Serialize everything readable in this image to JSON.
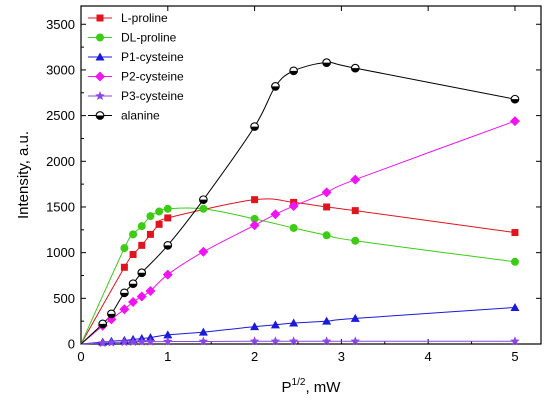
{
  "chart_data": {
    "type": "line",
    "title": "",
    "xlabel": {
      "base": "P",
      "sup": "1/2",
      "rest": ", mW"
    },
    "ylabel": "Intensity, a.u.",
    "xlim": [
      0,
      5.3
    ],
    "ylim": [
      0,
      3700
    ],
    "xticks": [
      0,
      1,
      2,
      3,
      4,
      5
    ],
    "yticks": [
      0,
      500,
      1000,
      1500,
      2000,
      2500,
      3000,
      3500
    ],
    "grid": false,
    "legend_position": "top-left",
    "series": [
      {
        "name": "L-proline",
        "color": "#e0141e",
        "marker": "square",
        "x": [
          0.5,
          0.6,
          0.7,
          0.8,
          0.9,
          1.0,
          2.0,
          2.45,
          2.83,
          3.16,
          5.0
        ],
        "y": [
          840,
          980,
          1080,
          1200,
          1310,
          1380,
          1580,
          1550,
          1500,
          1460,
          1220
        ]
      },
      {
        "name": "DL-proline",
        "color": "#3ccc14",
        "marker": "circle",
        "x": [
          0.5,
          0.6,
          0.7,
          0.8,
          0.9,
          1.0,
          1.41,
          2.0,
          2.45,
          2.83,
          3.16,
          5.0
        ],
        "y": [
          1050,
          1200,
          1290,
          1400,
          1450,
          1480,
          1480,
          1370,
          1270,
          1190,
          1130,
          900
        ]
      },
      {
        "name": "P1-cysteine",
        "color": "#1a1adc",
        "marker": "triangle",
        "x": [
          0.25,
          0.35,
          0.5,
          0.6,
          0.7,
          0.8,
          1.0,
          1.41,
          2.0,
          2.24,
          2.45,
          2.83,
          3.16,
          5.0
        ],
        "y": [
          20,
          30,
          40,
          50,
          60,
          70,
          100,
          130,
          190,
          210,
          230,
          250,
          280,
          400
        ]
      },
      {
        "name": "P2-cysteine",
        "color": "#f014f0",
        "marker": "diamond",
        "x": [
          0.25,
          0.35,
          0.5,
          0.6,
          0.7,
          0.8,
          1.0,
          1.41,
          2.0,
          2.24,
          2.45,
          2.83,
          3.16,
          5.0
        ],
        "y": [
          200,
          270,
          380,
          460,
          520,
          580,
          760,
          1010,
          1300,
          1420,
          1510,
          1660,
          1800,
          2440
        ]
      },
      {
        "name": "P3-cysteine",
        "color": "#8c46e6",
        "marker": "star",
        "x": [
          0.25,
          0.35,
          0.5,
          0.6,
          0.7,
          0.8,
          1.0,
          1.41,
          2.0,
          2.24,
          2.45,
          2.83,
          3.16,
          5.0
        ],
        "y": [
          10,
          15,
          20,
          22,
          24,
          25,
          27,
          28,
          30,
          30,
          30,
          30,
          30,
          30
        ]
      },
      {
        "name": "alanine",
        "color": "#000000",
        "marker": "half-circle",
        "x": [
          0.25,
          0.35,
          0.5,
          0.6,
          0.7,
          1.0,
          1.41,
          2.0,
          2.24,
          2.45,
          2.83,
          3.16,
          5.0
        ],
        "y": [
          220,
          330,
          560,
          660,
          780,
          1080,
          1580,
          2380,
          2820,
          2990,
          3080,
          3020,
          2680
        ]
      }
    ]
  }
}
